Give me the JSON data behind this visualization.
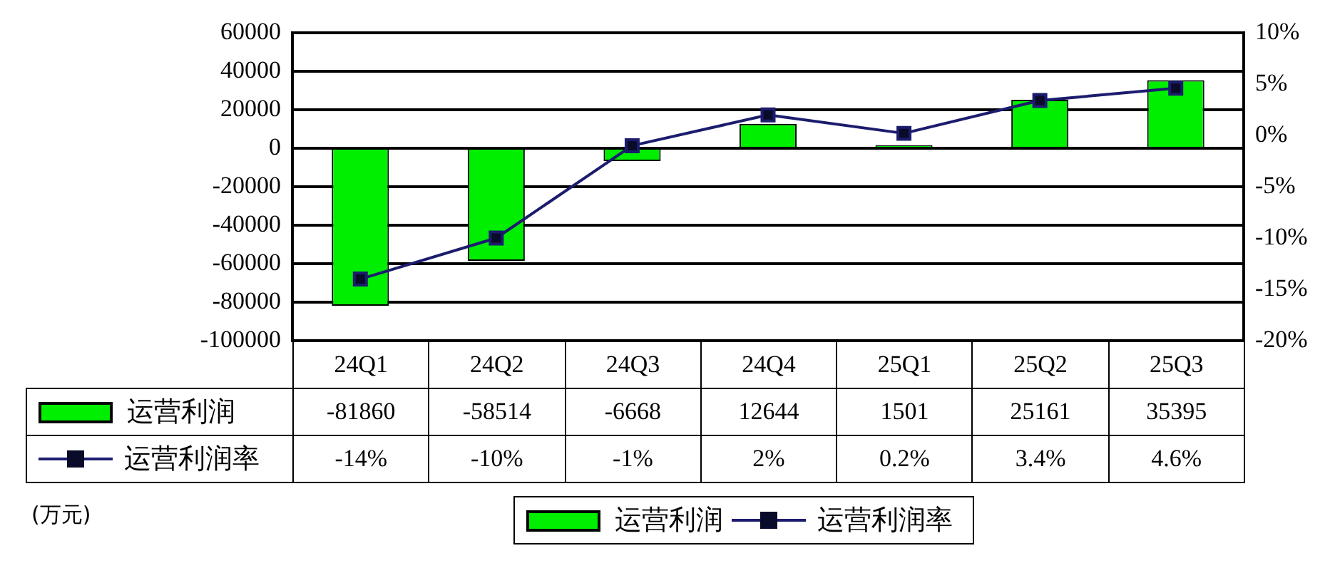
{
  "chart_data": {
    "type": "bar",
    "categories": [
      "24Q1",
      "24Q2",
      "24Q3",
      "24Q4",
      "25Q1",
      "25Q2",
      "25Q3"
    ],
    "series": [
      {
        "name": "运营利润",
        "color": "#00ee00",
        "values": [
          -81860,
          -58514,
          -6668,
          12644,
          1501,
          25161,
          35395
        ],
        "data_labels": true
      },
      {
        "name": "运营利润率",
        "type": "line",
        "axis": "y2",
        "color": "#1c1c6e",
        "marker": "square",
        "values": [
          -14,
          -10,
          -1,
          2,
          0.2,
          3.4,
          4.6
        ],
        "value_labels": [
          "-14%",
          "-10%",
          "-1%",
          "2%",
          "0.2%",
          "3.4%",
          "4.6%"
        ]
      }
    ],
    "ylim": [
      -100000,
      60000
    ],
    "yticks": [
      -100000,
      -80000,
      -60000,
      -40000,
      -20000,
      0,
      20000,
      40000,
      60000
    ],
    "y2lim": [
      -20,
      10
    ],
    "y2ticks": [
      {
        "value": -20,
        "label": "-20%"
      },
      {
        "value": -15,
        "label": "-15%"
      },
      {
        "value": -10,
        "label": "-10%"
      },
      {
        "value": -5,
        "label": "-5%"
      },
      {
        "value": 0,
        "label": "0%"
      },
      {
        "value": 5,
        "label": "5%"
      },
      {
        "value": 10,
        "label": "10%"
      }
    ],
    "annotations": [
      "(万元)"
    ],
    "grid": "y",
    "legend": "bottom"
  }
}
